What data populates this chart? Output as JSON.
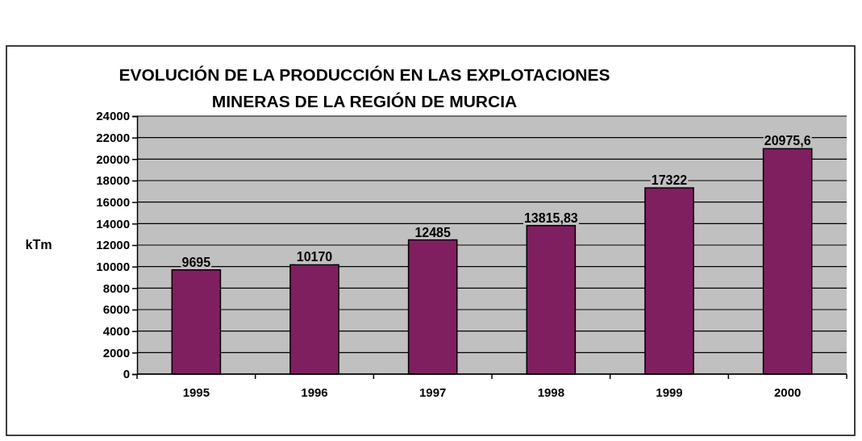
{
  "chart_data": {
    "type": "bar",
    "title": "EVOLUCIÓN DE LA PRODUCCIÓN EN LAS EXPLOTACIONES MINERAS DE LA REGIÓN DE MURCIA",
    "ylabel": "kTm",
    "categories": [
      "1995",
      "1996",
      "1997",
      "1998",
      "1999",
      "2000"
    ],
    "values": [
      9695,
      10170,
      12485,
      13815.83,
      17322,
      20975.6
    ],
    "value_labels": [
      "9695",
      "10170",
      "12485",
      "13815,83",
      "17322",
      "20975,6"
    ],
    "color": "#7f1f5f",
    "ylim": [
      0,
      24000
    ],
    "yticks": [
      0,
      2000,
      4000,
      6000,
      8000,
      10000,
      12000,
      14000,
      16000,
      18000,
      20000,
      22000,
      24000
    ],
    "grid": "y"
  }
}
